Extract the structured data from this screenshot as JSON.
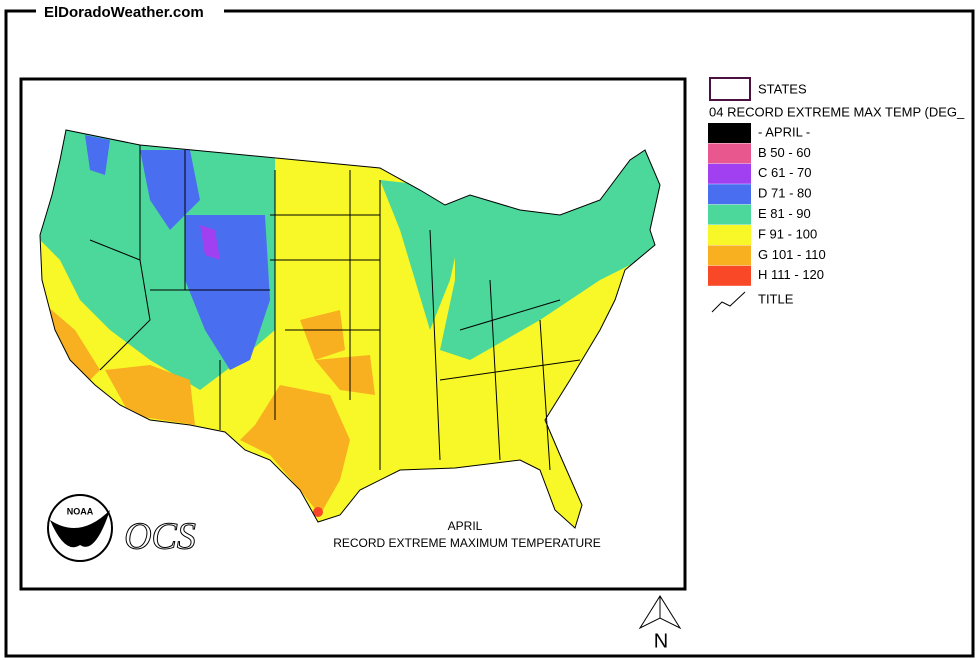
{
  "header": {
    "site": "ElDoradoWeather.com"
  },
  "map": {
    "title": "APRIL",
    "subtitle": "RECORD EXTREME MAXIMUM TEMPERATURE",
    "logo_text": "NOAA",
    "agency": "OCS",
    "north_label": "N"
  },
  "legend": {
    "states_label": "STATES",
    "layer_title": "04 RECORD EXTREME MAX TEMP (DEG_",
    "items": [
      {
        "label": "- APRIL -",
        "color": "#000000"
      },
      {
        "label": "B 50 - 60",
        "color": "#e8588f"
      },
      {
        "label": "C 61 - 70",
        "color": "#a040f0"
      },
      {
        "label": "D 71 - 80",
        "color": "#4a6ef0"
      },
      {
        "label": "E 81 - 90",
        "color": "#4cd89a"
      },
      {
        "label": "F 91 - 100",
        "color": "#f8f828"
      },
      {
        "label": "G 101 - 110",
        "color": "#f8b020"
      },
      {
        "label": "H 111 - 120",
        "color": "#f84828"
      }
    ],
    "title_label": "TITLE"
  }
}
